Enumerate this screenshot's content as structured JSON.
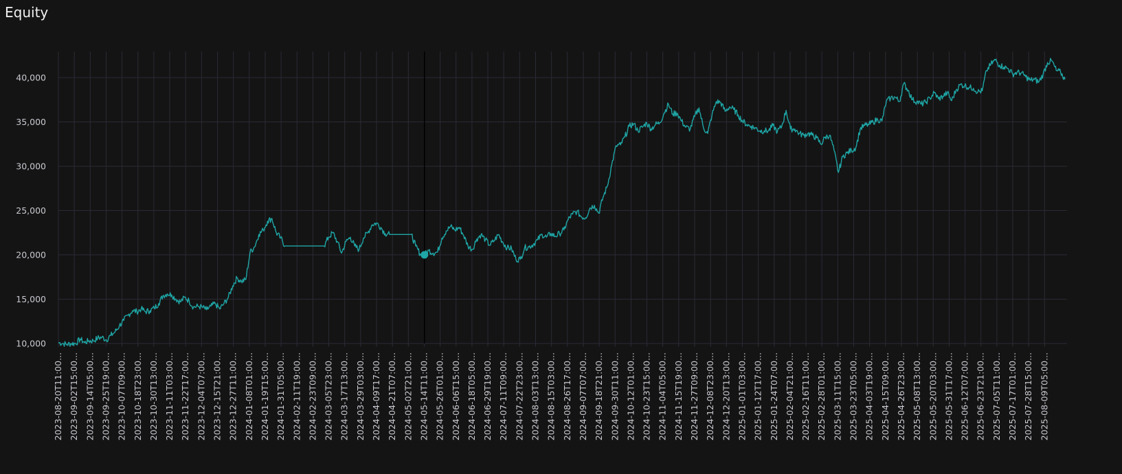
{
  "title": "Equity",
  "colors": {
    "background": "#141414",
    "grid": "#2a2a36",
    "line": "#1fa6a6",
    "text": "#c9c9d1",
    "crosshair": "#000000"
  },
  "chart_data": {
    "type": "line",
    "title": "Equity",
    "xlabel": "",
    "ylabel": "",
    "ylim": [
      10000,
      43000
    ],
    "yticks": [
      10000,
      15000,
      20000,
      25000,
      30000,
      35000,
      40000
    ],
    "ytick_labels": [
      "10,000",
      "15,000",
      "20,000",
      "25,000",
      "30,000",
      "35,000",
      "40,000"
    ],
    "grid": true,
    "xtick_labels": [
      "2023-08-20T11:00...",
      "2023-09-02T15:00...",
      "2023-09-14T05:00...",
      "2023-09-25T19:00...",
      "2023-10-07T09:00...",
      "2023-10-18T23:00...",
      "2023-10-30T13:00...",
      "2023-11-11T03:00...",
      "2023-11-22T17:00...",
      "2023-12-04T07:00...",
      "2023-12-15T21:00...",
      "2023-12-27T11:00...",
      "2024-01-08T01:00...",
      "2024-01-19T15:00...",
      "2024-01-31T05:00...",
      "2024-02-11T19:00...",
      "2024-02-23T09:00...",
      "2024-03-05T23:00...",
      "2024-03-17T13:00...",
      "2024-03-29T03:00...",
      "2024-04-09T17:00...",
      "2024-04-21T07:00...",
      "2024-05-02T21:00...",
      "2024-05-14T11:00...",
      "2024-05-26T01:00...",
      "2024-06-06T15:00...",
      "2024-06-18T05:00...",
      "2024-06-29T19:00...",
      "2024-07-11T09:00...",
      "2024-07-22T23:00...",
      "2024-08-03T13:00...",
      "2024-08-15T03:00...",
      "2024-08-26T17:00...",
      "2024-09-07T07:00...",
      "2024-09-18T21:00...",
      "2024-09-30T11:00...",
      "2024-10-12T01:00...",
      "2024-10-23T15:00...",
      "2024-11-04T05:00...",
      "2024-11-15T19:00...",
      "2024-11-27T09:00...",
      "2024-12-08T23:00...",
      "2024-12-20T13:00...",
      "2025-01-01T03:00...",
      "2025-01-12T17:00...",
      "2025-01-24T07:00...",
      "2025-02-04T21:00...",
      "2025-02-16T11:00...",
      "2025-02-28T01:00...",
      "2025-03-11T15:00...",
      "2025-03-23T05:00...",
      "2025-04-03T19:00...",
      "2025-04-15T09:00...",
      "2025-04-26T23:00...",
      "2025-05-08T13:00...",
      "2025-05-20T03:00...",
      "2025-05-31T17:00...",
      "2025-06-12T07:00...",
      "2025-06-23T21:00...",
      "2025-07-05T11:00...",
      "2025-07-17T01:00...",
      "2025-07-28T15:00...",
      "2025-08-09T05:00..."
    ],
    "series": [
      {
        "values": [
          [
            0,
            10100
          ],
          [
            1.5,
            10000
          ],
          [
            3,
            9900
          ],
          [
            4.5,
            10000
          ],
          [
            6,
            10000
          ],
          [
            7.5,
            10500
          ],
          [
            9,
            10100
          ],
          [
            10.5,
            10300
          ],
          [
            12,
            10300
          ],
          [
            13.5,
            10600
          ],
          [
            15,
            10700
          ],
          [
            16.5,
            10400
          ],
          [
            18,
            10900
          ],
          [
            19.5,
            11300
          ],
          [
            21,
            12000
          ],
          [
            22.5,
            12600
          ],
          [
            24,
            13200
          ],
          [
            25.5,
            13700
          ],
          [
            27,
            13600
          ],
          [
            28.5,
            13900
          ],
          [
            30,
            13600
          ],
          [
            31.5,
            13700
          ],
          [
            33,
            14000
          ],
          [
            34.5,
            14500
          ],
          [
            36,
            15400
          ],
          [
            37.5,
            15600
          ],
          [
            39,
            15500
          ],
          [
            40.5,
            15000
          ],
          [
            42,
            14700
          ],
          [
            43.5,
            15200
          ],
          [
            45,
            14800
          ],
          [
            46.5,
            14100
          ],
          [
            48,
            14200
          ],
          [
            49.5,
            14100
          ],
          [
            51,
            13800
          ],
          [
            52.5,
            14200
          ],
          [
            54,
            14500
          ],
          [
            55.5,
            13900
          ],
          [
            57,
            14500
          ],
          [
            58.5,
            15200
          ],
          [
            60,
            16500
          ],
          [
            61.5,
            17400
          ],
          [
            63,
            17000
          ],
          [
            64.5,
            17200
          ],
          [
            66,
            20300
          ],
          [
            67.5,
            20900
          ],
          [
            69,
            22300
          ],
          [
            70.5,
            22800
          ],
          [
            72,
            23800
          ],
          [
            73.5,
            24100
          ],
          [
            75,
            22500
          ],
          [
            76.5,
            21900
          ],
          [
            78,
            21000
          ],
          [
            79.5,
            21000
          ],
          [
            81,
            21000
          ],
          [
            82.5,
            21000
          ],
          [
            84,
            21000
          ],
          [
            85.5,
            21000
          ],
          [
            87,
            21000
          ],
          [
            88.5,
            21000
          ],
          [
            90,
            21000
          ],
          [
            91.5,
            21000
          ],
          [
            93,
            22000
          ],
          [
            94.5,
            22500
          ],
          [
            96,
            21500
          ],
          [
            97.5,
            20200
          ],
          [
            99,
            21500
          ],
          [
            100.5,
            22000
          ],
          [
            102,
            21000
          ],
          [
            103.5,
            20600
          ],
          [
            105,
            21900
          ],
          [
            106.5,
            22500
          ],
          [
            108,
            23400
          ],
          [
            109.5,
            23600
          ],
          [
            111,
            23100
          ],
          [
            112.5,
            22400
          ],
          [
            114,
            22300
          ],
          [
            115.5,
            22300
          ],
          [
            117,
            22300
          ],
          [
            118.5,
            22300
          ],
          [
            120,
            22300
          ],
          [
            121.5,
            22300
          ],
          [
            123,
            21000
          ],
          [
            124.5,
            20100
          ],
          [
            126,
            20000
          ],
          [
            127.5,
            20500
          ],
          [
            129,
            20200
          ],
          [
            130.5,
            20300
          ],
          [
            132,
            21900
          ],
          [
            133.5,
            22700
          ],
          [
            135,
            23200
          ],
          [
            136.5,
            22800
          ],
          [
            138,
            23100
          ],
          [
            139.5,
            22200
          ],
          [
            141,
            21000
          ],
          [
            142.5,
            20600
          ],
          [
            144,
            21800
          ],
          [
            145.5,
            22300
          ],
          [
            147,
            21700
          ],
          [
            148.5,
            21100
          ],
          [
            150,
            21600
          ],
          [
            151.5,
            22300
          ],
          [
            153,
            21400
          ],
          [
            154.5,
            20800
          ],
          [
            156,
            20700
          ],
          [
            157.5,
            19500
          ],
          [
            159,
            19500
          ],
          [
            160.5,
            20800
          ],
          [
            162,
            20900
          ],
          [
            163.5,
            21200
          ],
          [
            165,
            21700
          ],
          [
            166.5,
            22300
          ],
          [
            168,
            22000
          ],
          [
            169.5,
            22400
          ],
          [
            171,
            22100
          ],
          [
            172.5,
            22400
          ],
          [
            174,
            22800
          ],
          [
            175.5,
            24000
          ],
          [
            177,
            24600
          ],
          [
            178.5,
            24900
          ],
          [
            180,
            24300
          ],
          [
            181.5,
            24200
          ],
          [
            183,
            25300
          ],
          [
            184.5,
            25600
          ],
          [
            186,
            24700
          ],
          [
            187.5,
            26500
          ],
          [
            189,
            27800
          ],
          [
            190.5,
            30200
          ],
          [
            192,
            32300
          ],
          [
            193.5,
            32400
          ],
          [
            195,
            33300
          ],
          [
            196.5,
            34500
          ],
          [
            198,
            34800
          ],
          [
            199.5,
            34000
          ],
          [
            201,
            34400
          ],
          [
            202.5,
            34900
          ],
          [
            204,
            34200
          ],
          [
            205.5,
            34700
          ],
          [
            207,
            34900
          ],
          [
            208.5,
            36000
          ],
          [
            210,
            37000
          ],
          [
            211.5,
            35900
          ],
          [
            213,
            36000
          ],
          [
            214.5,
            35100
          ],
          [
            216,
            34400
          ],
          [
            217.5,
            34200
          ],
          [
            219,
            35600
          ],
          [
            220.5,
            36600
          ],
          [
            222,
            34400
          ],
          [
            223.5,
            33700
          ],
          [
            225,
            35800
          ],
          [
            226.5,
            37300
          ],
          [
            228,
            37200
          ],
          [
            229.5,
            36200
          ],
          [
            231,
            36700
          ],
          [
            232.5,
            36400
          ],
          [
            234,
            35800
          ],
          [
            235.5,
            35100
          ],
          [
            237,
            34700
          ],
          [
            238.5,
            34500
          ],
          [
            240,
            34300
          ],
          [
            241.5,
            34000
          ],
          [
            243,
            34000
          ],
          [
            244.5,
            34000
          ],
          [
            246,
            34600
          ],
          [
            247.5,
            33900
          ],
          [
            249,
            34500
          ],
          [
            250.5,
            36300
          ],
          [
            252,
            34200
          ],
          [
            253.5,
            34200
          ],
          [
            255,
            33700
          ],
          [
            256.5,
            33500
          ],
          [
            258,
            33700
          ],
          [
            259.5,
            33500
          ],
          [
            261,
            33200
          ],
          [
            262.5,
            32500
          ],
          [
            264,
            33300
          ],
          [
            265.5,
            33500
          ],
          [
            267,
            31800
          ],
          [
            268.5,
            29300
          ],
          [
            270,
            31100
          ],
          [
            271.5,
            31500
          ],
          [
            273,
            31800
          ],
          [
            274.5,
            32100
          ],
          [
            276,
            34200
          ],
          [
            277.5,
            34600
          ],
          [
            279,
            34700
          ],
          [
            280.5,
            35000
          ],
          [
            282,
            35300
          ],
          [
            283.5,
            35100
          ],
          [
            285,
            37300
          ],
          [
            286.5,
            37700
          ],
          [
            288,
            37800
          ],
          [
            289.5,
            37300
          ],
          [
            291,
            39300
          ],
          [
            292.5,
            38600
          ],
          [
            294,
            37500
          ],
          [
            295.5,
            37300
          ],
          [
            297,
            37000
          ],
          [
            298.5,
            37200
          ],
          [
            300,
            37700
          ],
          [
            301.5,
            38300
          ],
          [
            303,
            37600
          ],
          [
            304.5,
            37900
          ],
          [
            306,
            38300
          ],
          [
            307.5,
            37400
          ],
          [
            309,
            38600
          ],
          [
            310.5,
            39200
          ],
          [
            312,
            39100
          ],
          [
            313.5,
            38900
          ],
          [
            315,
            38800
          ],
          [
            316.5,
            38400
          ],
          [
            318,
            38500
          ],
          [
            319.5,
            40800
          ],
          [
            321,
            41500
          ],
          [
            322.5,
            42000
          ],
          [
            324,
            41400
          ],
          [
            325.5,
            41200
          ],
          [
            327,
            41000
          ],
          [
            328.5,
            40400
          ],
          [
            330,
            40600
          ],
          [
            331.5,
            40500
          ],
          [
            333,
            40100
          ],
          [
            334.5,
            39700
          ],
          [
            336,
            39800
          ],
          [
            337.5,
            39500
          ],
          [
            339,
            40400
          ],
          [
            340.5,
            41700
          ],
          [
            342,
            41900
          ],
          [
            343.5,
            40800
          ],
          [
            345,
            40600
          ],
          [
            346.5,
            39800
          ]
        ]
      }
    ],
    "marker": {
      "x": 126,
      "y": 20000
    }
  }
}
